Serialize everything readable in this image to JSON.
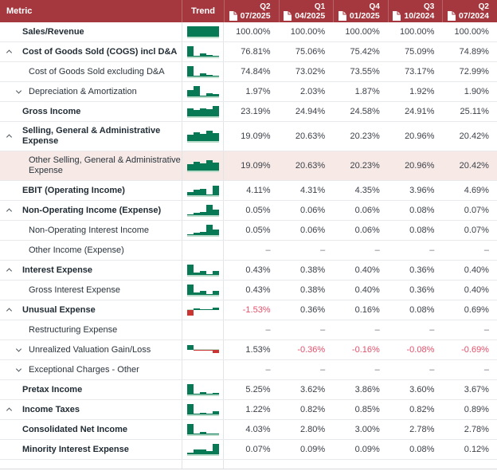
{
  "table": {
    "header": {
      "metric_label": "Metric",
      "trend_label": "Trend",
      "columns": [
        {
          "period": "Q2",
          "date": "07/2025"
        },
        {
          "period": "Q1",
          "date": "04/2025"
        },
        {
          "period": "Q4",
          "date": "01/2025"
        },
        {
          "period": "Q3",
          "date": "10/2024"
        },
        {
          "period": "Q2",
          "date": "07/2024"
        }
      ]
    },
    "rows": [
      {
        "label": "Sales/Revenue",
        "level": 1,
        "bold": true,
        "chevron": null,
        "highlight": false,
        "tall": false,
        "values": [
          "100.00%",
          "100.00%",
          "100.00%",
          "100.00%",
          "100.00%"
        ],
        "trend": [
          1,
          1,
          1,
          1,
          1
        ]
      },
      {
        "label": "Cost of Goods Sold (COGS) incl D&A",
        "level": 1,
        "bold": true,
        "chevron": "up",
        "highlight": false,
        "tall": false,
        "values": [
          "76.81%",
          "75.06%",
          "75.42%",
          "75.09%",
          "74.89%"
        ],
        "trend": [
          1,
          0.1,
          0.3,
          0.14,
          0.06
        ]
      },
      {
        "label": "Cost of Goods Sold excluding D&A",
        "level": 2,
        "bold": false,
        "chevron": null,
        "highlight": false,
        "tall": false,
        "values": [
          "74.84%",
          "73.02%",
          "73.55%",
          "73.17%",
          "72.99%"
        ],
        "trend": [
          1,
          0.06,
          0.28,
          0.16,
          0.06
        ]
      },
      {
        "label": "Depreciation & Amortization",
        "level": 2,
        "bold": false,
        "chevron": "down",
        "highlight": false,
        "tall": false,
        "values": [
          "1.97%",
          "2.03%",
          "1.87%",
          "1.92%",
          "1.90%"
        ],
        "trend": [
          0.62,
          1,
          0.05,
          0.32,
          0.2
        ]
      },
      {
        "label": "Gross Income",
        "level": 1,
        "bold": true,
        "chevron": null,
        "highlight": false,
        "tall": false,
        "values": [
          "23.19%",
          "24.94%",
          "24.58%",
          "24.91%",
          "25.11%"
        ],
        "trend": [
          0.8,
          0.64,
          0.78,
          0.7,
          1
        ]
      },
      {
        "label": "Selling, General & Administrative Expense",
        "level": 1,
        "bold": true,
        "chevron": "up",
        "highlight": false,
        "tall": true,
        "values": [
          "19.09%",
          "20.63%",
          "20.23%",
          "20.96%",
          "20.42%"
        ],
        "trend": [
          0.62,
          0.82,
          0.66,
          1,
          0.78
        ]
      },
      {
        "label": "Other Selling, General & Administrative Expense",
        "level": 2,
        "bold": false,
        "chevron": null,
        "highlight": true,
        "tall": true,
        "values": [
          "19.09%",
          "20.63%",
          "20.23%",
          "20.96%",
          "20.42%"
        ],
        "trend": [
          0.62,
          0.82,
          0.66,
          1,
          0.78
        ]
      },
      {
        "label": "EBIT (Operating Income)",
        "level": 1,
        "bold": true,
        "chevron": null,
        "highlight": false,
        "tall": false,
        "values": [
          "4.11%",
          "4.31%",
          "4.35%",
          "3.96%",
          "4.69%"
        ],
        "trend": [
          0.3,
          0.55,
          0.6,
          0.05,
          0.95
        ]
      },
      {
        "label": "Non-Operating Income (Expense)",
        "level": 1,
        "bold": true,
        "chevron": "up",
        "highlight": false,
        "tall": false,
        "values": [
          "0.05%",
          "0.06%",
          "0.06%",
          "0.08%",
          "0.07%"
        ],
        "trend": [
          0.08,
          0.25,
          0.3,
          1,
          0.5
        ]
      },
      {
        "label": "Non-Operating Interest Income",
        "level": 2,
        "bold": false,
        "chevron": null,
        "highlight": false,
        "tall": false,
        "values": [
          "0.05%",
          "0.06%",
          "0.06%",
          "0.08%",
          "0.07%"
        ],
        "trend": [
          0.08,
          0.25,
          0.3,
          1,
          0.5
        ]
      },
      {
        "label": "Other Income (Expense)",
        "level": 2,
        "bold": false,
        "chevron": null,
        "highlight": false,
        "tall": false,
        "values": [
          "–",
          "–",
          "–",
          "–",
          "–"
        ],
        "trend": null
      },
      {
        "label": "Interest Expense",
        "level": 1,
        "bold": true,
        "chevron": "up",
        "highlight": false,
        "tall": false,
        "values": [
          "0.43%",
          "0.38%",
          "0.40%",
          "0.36%",
          "0.40%"
        ],
        "trend": [
          1,
          0.22,
          0.38,
          0.05,
          0.42
        ]
      },
      {
        "label": "Gross Interest Expense",
        "level": 2,
        "bold": false,
        "chevron": null,
        "highlight": false,
        "tall": false,
        "values": [
          "0.43%",
          "0.38%",
          "0.40%",
          "0.36%",
          "0.40%"
        ],
        "trend": [
          1,
          0.22,
          0.38,
          0.05,
          0.42
        ]
      },
      {
        "label": "Unusual Expense",
        "level": 1,
        "bold": true,
        "chevron": "up",
        "highlight": false,
        "tall": false,
        "values": [
          "-1.53%",
          "0.36%",
          "0.16%",
          "0.08%",
          "0.69%"
        ],
        "trend": [
          -1,
          0.28,
          0.12,
          0.06,
          0.48
        ]
      },
      {
        "label": "Restructuring Expense",
        "level": 2,
        "bold": false,
        "chevron": null,
        "highlight": false,
        "tall": false,
        "values": [
          "–",
          "–",
          "–",
          "–",
          "–"
        ],
        "trend": null
      },
      {
        "label": "Unrealized Valuation Gain/Loss",
        "level": 2,
        "bold": false,
        "chevron": "down",
        "highlight": false,
        "tall": false,
        "values": [
          "1.53%",
          "-0.36%",
          "-0.16%",
          "-0.08%",
          "-0.69%"
        ],
        "trend": [
          0.85,
          -0.14,
          -0.1,
          -0.07,
          -0.5
        ]
      },
      {
        "label": "Exceptional Charges - Other",
        "level": 2,
        "bold": false,
        "chevron": "down",
        "highlight": false,
        "tall": false,
        "values": [
          "–",
          "–",
          "–",
          "–",
          "–"
        ],
        "trend": null
      },
      {
        "label": "Pretax Income",
        "level": 1,
        "bold": true,
        "chevron": null,
        "highlight": false,
        "tall": false,
        "values": [
          "5.25%",
          "3.62%",
          "3.86%",
          "3.60%",
          "3.67%"
        ],
        "trend": [
          1,
          0.07,
          0.2,
          0.05,
          0.13
        ]
      },
      {
        "label": "Income Taxes",
        "level": 1,
        "bold": true,
        "chevron": "up",
        "highlight": false,
        "tall": false,
        "values": [
          "1.22%",
          "0.82%",
          "0.85%",
          "0.82%",
          "0.89%"
        ],
        "trend": [
          1,
          0.05,
          0.18,
          0.05,
          0.27
        ]
      },
      {
        "label": "Consolidated Net Income",
        "level": 1,
        "bold": true,
        "chevron": null,
        "highlight": false,
        "tall": false,
        "values": [
          "4.03%",
          "2.80%",
          "3.00%",
          "2.78%",
          "2.78%"
        ],
        "trend": [
          1,
          0.06,
          0.24,
          0.05,
          0.05
        ]
      },
      {
        "label": "Minority Interest Expense",
        "level": 1,
        "bold": true,
        "chevron": null,
        "highlight": false,
        "tall": false,
        "values": [
          "0.07%",
          "0.09%",
          "0.09%",
          "0.08%",
          "0.12%"
        ],
        "trend": [
          0.14,
          0.45,
          0.45,
          0.28,
          1
        ]
      }
    ]
  },
  "colors": {
    "header_bg": "#A4383E",
    "sparkline_green": "#077A55",
    "sparkline_red": "#CA3431",
    "sparkline_baseline": "#b9dccb",
    "negative_text": "#E4506B",
    "highlight_row_bg": "#f7eae6"
  },
  "icons": {
    "quarter_header_icon": "document-icon"
  }
}
